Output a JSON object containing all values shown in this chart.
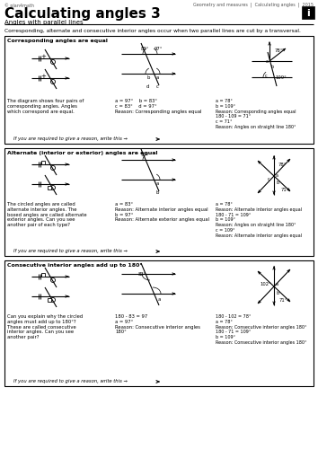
{
  "title": "Calculating angles 3",
  "subtitle": "Angles with parallel lines",
  "header_left": "© plan4math",
  "header_right": "Geometry and measures  |  Calculating angles  |  2015",
  "intro_text": "Corresponding, alternate and consecutive interior angles occur when two parallel lines are cut by a transversal.",
  "box1_title": "Corresponding angles are equal",
  "box1_left_text": "The diagram shows four pairs of\ncorresponding angles. Angles\nwhich correspond are equal.",
  "box1_mid_text": "a = 97°    b = 83°\nc = 83°    d = 97°\nReason: Corresponding angles equal",
  "box1_right_text": "a = 78°\nb = 109°\nReason: Corresponding angles equal\n180 - 109 = 71°\nc = 71°\nReason: Angles on straight line 180°",
  "box1_footer": "If you are required to give a reason, write this →",
  "box2_title": "Alternate (interior or exterior) angles are equal",
  "box2_left_text": "The circled angles are called\nalternate interior angles. The\nboxed angles are called alternate\nexterior angles. Can you see\nanother pair of each type?",
  "box2_mid_text": "a = 83°\nReason: Alternate interior angles equal\nb = 97°\nReason: Alternate exterior angles equal",
  "box2_right_text": "a = 78°\nReason: Alternate interior angles equal\n180 - 71 = 109°\nb = 109°\nReason: Angles on straight line 180°\nc = 109°\nReason: Alternate interior angles equal",
  "box2_footer": "If you are required to give a reason, write this →",
  "box3_title": "Consecutive interior angles add up to 180°",
  "box3_left_text": "Can you explain why the circled\nangles must add up to 180°?\nThese are called consecutive\ninterior angles. Can you see\nanother pair?",
  "box3_mid_text": "180 - 83 = 97\na = 97°\nReason: Consecutive interior angles\n180°",
  "box3_right_text": "180 - 102 = 78°\na = 78°\nReason: Consecutive interior angles 180°\n180 - 71 = 109°\nb = 109°\nReason: Consecutive interior angles 180°",
  "box3_footer": "If you are required to give a reason, write this →",
  "bg_color": "#ffffff"
}
